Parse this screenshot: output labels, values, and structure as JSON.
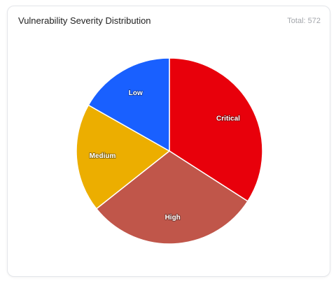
{
  "header": {
    "title": "Vulnerability Severity Distribution",
    "total_prefix": "Total:",
    "total_value": "572"
  },
  "chart_data": {
    "type": "pie",
    "title": "Vulnerability Severity Distribution",
    "total": 572,
    "categories": [
      "Critical",
      "High",
      "Medium",
      "Low"
    ],
    "values": [
      195,
      173,
      108,
      96
    ],
    "colors": [
      "#e8000b",
      "#c0564a",
      "#ecae00",
      "#1960ff"
    ],
    "start": "12 o'clock, clockwise",
    "legend": "none (labels on slices)"
  }
}
